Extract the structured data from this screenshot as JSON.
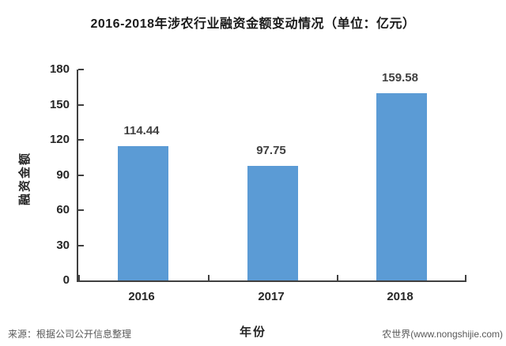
{
  "title": "2016-2018年涉农行业融资金额变动情况（单位：亿元）",
  "chart_data": {
    "type": "bar",
    "categories": [
      "2016",
      "2017",
      "2018"
    ],
    "values": [
      114.44,
      97.75,
      159.58
    ],
    "value_labels": [
      "114.44",
      "97.75",
      "159.58"
    ],
    "title": "2016-2018年涉农行业融资金额变动情况（单位：亿元）",
    "xlabel": "年份",
    "ylabel": "融资金额",
    "ylim": [
      0,
      180
    ],
    "ytick_step": 30,
    "yticks": [
      0,
      30,
      60,
      90,
      120,
      150,
      180
    ],
    "grid": false,
    "legend": "none",
    "bar_color": "#5b9bd5",
    "axis_color": "#404040"
  },
  "footer": {
    "source": "来源：根据公司公开信息整理",
    "brand": "农世界(www.nongshijie.com)"
  }
}
